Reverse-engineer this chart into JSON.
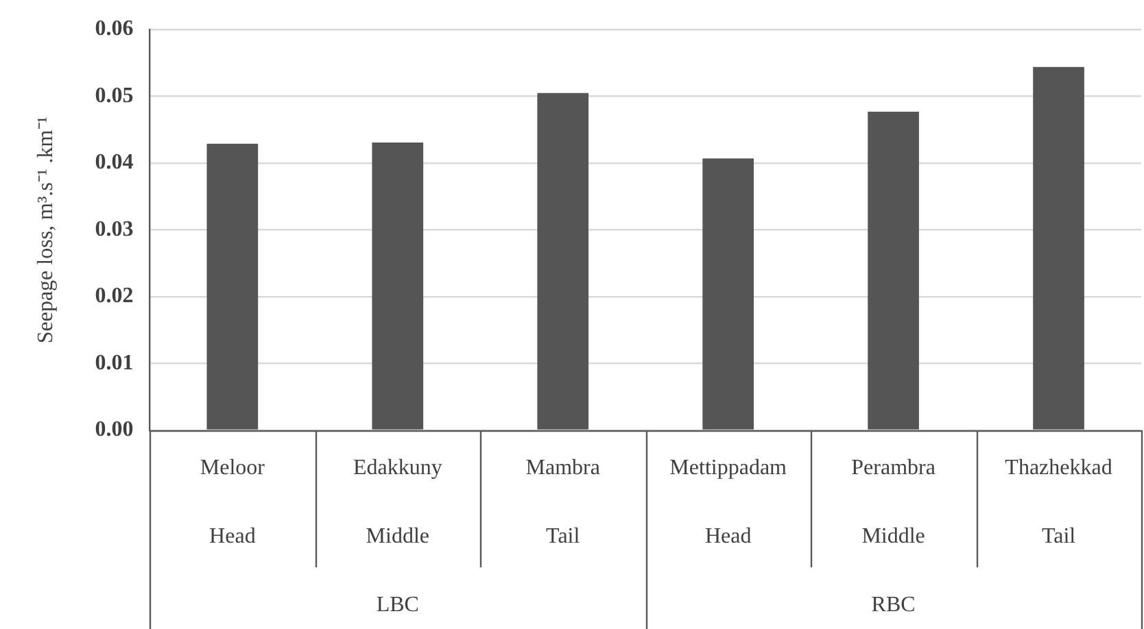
{
  "chart_data": {
    "type": "bar",
    "ylabel": "Seepage loss, m³.s⁻¹ .km⁻¹",
    "categories": [
      "Meloor",
      "Edakkuny",
      "Mambra",
      "Mettippadam",
      "Perambra",
      "Thazhekkad"
    ],
    "values": [
      0.0429,
      0.0431,
      0.0505,
      0.0407,
      0.0477,
      0.0544
    ],
    "color": "#555555",
    "ylim": [
      0,
      0.06
    ],
    "yticks": [
      {
        "value": 0,
        "label": "0.00"
      },
      {
        "value": 0.01,
        "label": "0.01"
      },
      {
        "value": 0.02,
        "label": "0.02"
      },
      {
        "value": 0.03,
        "label": "0.03"
      },
      {
        "value": 0.04,
        "label": "0.04"
      },
      {
        "value": 0.05,
        "label": "0.05"
      },
      {
        "value": 0.06,
        "label": "0.06"
      }
    ],
    "grid": "y",
    "annotations": [
      "Head",
      "Middle",
      "Tail",
      "Head",
      "Middle",
      "Tail",
      "LBC",
      "RBC"
    ]
  }
}
